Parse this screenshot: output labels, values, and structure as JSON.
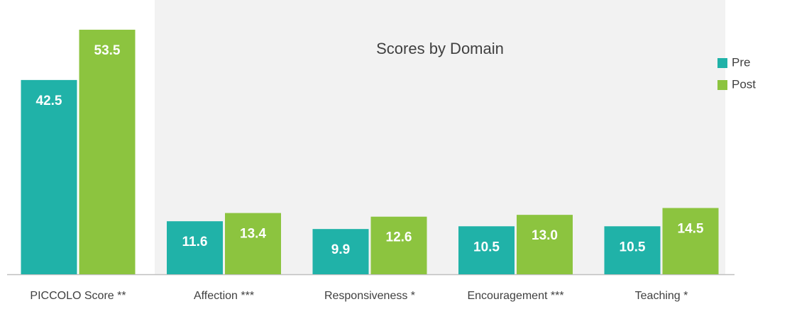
{
  "chart_data": {
    "type": "bar",
    "title": "Scores by Domain",
    "categories": [
      "PICCOLO Score **",
      "Affection ***",
      "Responsiveness *",
      "Encouragement ***",
      "Teaching *"
    ],
    "series": [
      {
        "name": "Pre",
        "color": "#20b2a8",
        "values": [
          42.5,
          11.6,
          9.9,
          10.5,
          10.5
        ],
        "value_labels": [
          "42.5",
          "11.6",
          "9.9",
          "10.5",
          "10.5"
        ]
      },
      {
        "name": "Post",
        "color": "#8cc43f",
        "values": [
          53.5,
          13.4,
          12.6,
          13.0,
          14.5
        ],
        "value_labels": [
          "53.5",
          "13.4",
          "12.6",
          "13.0",
          "14.5"
        ]
      }
    ],
    "ylim": [
      0,
      60
    ],
    "legend": "right"
  }
}
